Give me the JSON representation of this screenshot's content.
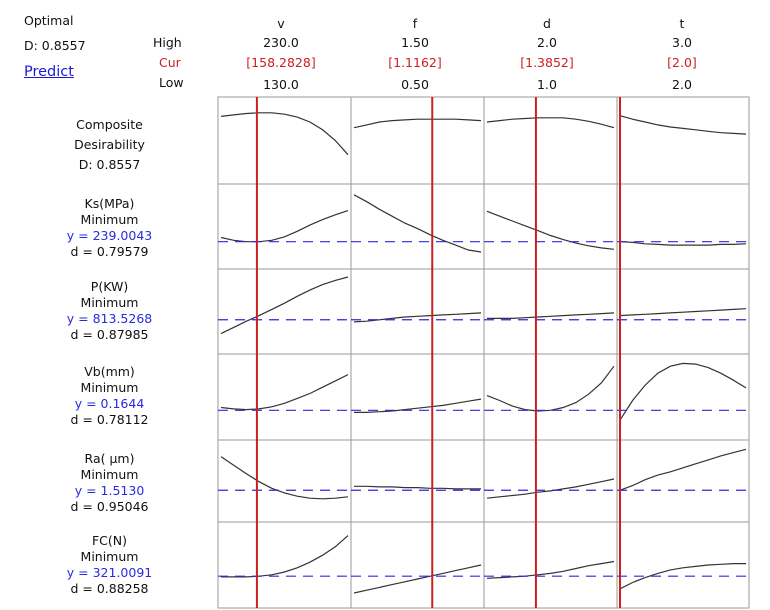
{
  "header": {
    "optimal_label": "Optimal",
    "d_value": "D: 0.8557",
    "predict_label": "Predict",
    "high_label": "High",
    "cur_label": "Cur",
    "low_label": "Low"
  },
  "factors": [
    {
      "name": "v",
      "high": "230.0",
      "cur": "[158.2828]",
      "low": "130.0",
      "high_num": 230,
      "cur_num": 158.2828,
      "low_num": 130
    },
    {
      "name": "f",
      "high": "1.50",
      "cur": "[1.1162]",
      "low": "0.50",
      "high_num": 1.5,
      "cur_num": 1.1162,
      "low_num": 0.5
    },
    {
      "name": "d",
      "high": "2.0",
      "cur": "[1.3852]",
      "low": "1.0",
      "high_num": 2.0,
      "cur_num": 1.3852,
      "low_num": 1.0
    },
    {
      "name": "t",
      "high": "3.0",
      "cur": "[2.0]",
      "low": "2.0",
      "high_num": 3.0,
      "cur_num": 2.0,
      "low_num": 2.0
    }
  ],
  "responses": [
    {
      "title": "Composite",
      "subtitle": "Desirability",
      "y": "",
      "d": "D: 0.8557"
    },
    {
      "title": "Ks(MPa)",
      "subtitle": "Minimum",
      "y": "y = 239.0043",
      "d": "d = 0.79579"
    },
    {
      "title": "P(KW)",
      "subtitle": "Minimum",
      "y": "y = 813.5268",
      "d": "d = 0.87985"
    },
    {
      "title": "Vb(mm)",
      "subtitle": "Minimum",
      "y": "y = 0.1644",
      "d": "d = 0.78112"
    },
    {
      "title": "Ra( µm)",
      "subtitle": "Minimum",
      "y": "y = 1.5130",
      "d": "d = 0.95046"
    },
    {
      "title": "FC(N)",
      "subtitle": "Minimum",
      "y": "y = 321.0091",
      "d": "d = 0.88258"
    }
  ],
  "colors": {
    "current_line": "#cc1f1f",
    "target_line": "#2a2adf",
    "curve": "#333333",
    "grid": "#9a9a9a"
  },
  "chart_data": {
    "type": "line",
    "title": "",
    "xlabel": "",
    "ylabel": "",
    "grid": true,
    "x_samples": [
      0,
      0.1,
      0.2,
      0.3,
      0.4,
      0.5,
      0.6,
      0.7,
      0.8,
      0.9,
      1.0
    ],
    "panels": [
      {
        "row": 0,
        "factor": "v",
        "curve": [
          0.16,
          0.14,
          0.12,
          0.11,
          0.11,
          0.13,
          0.17,
          0.24,
          0.35,
          0.5,
          0.7
        ],
        "ref": null
      },
      {
        "row": 0,
        "factor": "f",
        "curve": [
          0.32,
          0.28,
          0.24,
          0.22,
          0.21,
          0.2,
          0.2,
          0.2,
          0.2,
          0.21,
          0.22
        ],
        "ref": null
      },
      {
        "row": 0,
        "factor": "d",
        "curve": [
          0.24,
          0.22,
          0.2,
          0.19,
          0.18,
          0.18,
          0.18,
          0.2,
          0.23,
          0.27,
          0.32
        ],
        "ref": null
      },
      {
        "row": 0,
        "factor": "t",
        "curve": [
          0.15,
          0.2,
          0.24,
          0.28,
          0.31,
          0.33,
          0.35,
          0.37,
          0.39,
          0.4,
          0.41
        ],
        "ref": null
      },
      {
        "row": 1,
        "factor": "v",
        "curve": [
          0.66,
          0.7,
          0.72,
          0.72,
          0.7,
          0.65,
          0.57,
          0.48,
          0.4,
          0.33,
          0.27
        ],
        "ref": 0.72
      },
      {
        "row": 1,
        "factor": "f",
        "curve": [
          0.04,
          0.14,
          0.25,
          0.35,
          0.45,
          0.53,
          0.62,
          0.7,
          0.77,
          0.84,
          0.87
        ],
        "ref": 0.72
      },
      {
        "row": 1,
        "factor": "d",
        "curve": [
          0.28,
          0.35,
          0.42,
          0.49,
          0.56,
          0.63,
          0.69,
          0.74,
          0.78,
          0.81,
          0.83
        ],
        "ref": 0.72
      },
      {
        "row": 1,
        "factor": "t",
        "curve": [
          0.72,
          0.73,
          0.75,
          0.76,
          0.77,
          0.77,
          0.77,
          0.77,
          0.76,
          0.76,
          0.75
        ],
        "ref": 0.72
      },
      {
        "row": 2,
        "factor": "v",
        "curve": [
          0.82,
          0.73,
          0.64,
          0.56,
          0.47,
          0.38,
          0.28,
          0.19,
          0.11,
          0.05,
          0.0
        ],
        "ref": 0.62
      },
      {
        "row": 2,
        "factor": "f",
        "curve": [
          0.65,
          0.64,
          0.62,
          0.6,
          0.58,
          0.57,
          0.56,
          0.55,
          0.54,
          0.53,
          0.52
        ],
        "ref": 0.62
      },
      {
        "row": 2,
        "factor": "d",
        "curve": [
          0.6,
          0.6,
          0.6,
          0.59,
          0.58,
          0.57,
          0.56,
          0.55,
          0.54,
          0.53,
          0.52
        ],
        "ref": 0.62
      },
      {
        "row": 2,
        "factor": "t",
        "curve": [
          0.56,
          0.55,
          0.54,
          0.53,
          0.52,
          0.51,
          0.5,
          0.49,
          0.48,
          0.47,
          0.46
        ],
        "ref": 0.62
      },
      {
        "row": 3,
        "factor": "v",
        "curve": [
          0.65,
          0.67,
          0.68,
          0.67,
          0.64,
          0.59,
          0.52,
          0.45,
          0.36,
          0.27,
          0.18
        ],
        "ref": 0.69
      },
      {
        "row": 3,
        "factor": "f",
        "curve": [
          0.72,
          0.72,
          0.71,
          0.7,
          0.68,
          0.66,
          0.64,
          0.62,
          0.59,
          0.56,
          0.53
        ],
        "ref": 0.69
      },
      {
        "row": 3,
        "factor": "d",
        "curve": [
          0.48,
          0.55,
          0.63,
          0.68,
          0.7,
          0.69,
          0.65,
          0.58,
          0.46,
          0.3,
          0.06
        ],
        "ref": 0.69
      },
      {
        "row": 3,
        "factor": "t",
        "curve": [
          0.83,
          0.55,
          0.33,
          0.16,
          0.06,
          0.02,
          0.03,
          0.08,
          0.16,
          0.26,
          0.37
        ],
        "ref": 0.69
      },
      {
        "row": 4,
        "factor": "v",
        "curve": [
          0.13,
          0.26,
          0.39,
          0.51,
          0.61,
          0.68,
          0.73,
          0.76,
          0.77,
          0.76,
          0.74
        ],
        "ref": 0.64
      },
      {
        "row": 4,
        "factor": "f",
        "curve": [
          0.58,
          0.58,
          0.59,
          0.59,
          0.6,
          0.6,
          0.61,
          0.61,
          0.62,
          0.62,
          0.62
        ],
        "ref": 0.64
      },
      {
        "row": 4,
        "factor": "d",
        "curve": [
          0.76,
          0.74,
          0.72,
          0.7,
          0.67,
          0.65,
          0.62,
          0.59,
          0.55,
          0.51,
          0.47
        ],
        "ref": 0.64
      },
      {
        "row": 4,
        "factor": "t",
        "curve": [
          0.64,
          0.57,
          0.48,
          0.41,
          0.36,
          0.3,
          0.24,
          0.18,
          0.12,
          0.07,
          0.02
        ],
        "ref": 0.64
      },
      {
        "row": 5,
        "factor": "v",
        "curve": [
          0.67,
          0.67,
          0.67,
          0.66,
          0.64,
          0.6,
          0.54,
          0.46,
          0.36,
          0.24,
          0.08
        ],
        "ref": 0.66
      },
      {
        "row": 5,
        "factor": "f",
        "curve": [
          0.9,
          0.86,
          0.82,
          0.78,
          0.74,
          0.7,
          0.66,
          0.62,
          0.58,
          0.54,
          0.5
        ],
        "ref": 0.66
      },
      {
        "row": 5,
        "factor": "d",
        "curve": [
          0.69,
          0.68,
          0.67,
          0.66,
          0.64,
          0.62,
          0.59,
          0.55,
          0.51,
          0.48,
          0.45
        ],
        "ref": 0.66
      },
      {
        "row": 5,
        "factor": "t",
        "curve": [
          0.84,
          0.75,
          0.68,
          0.62,
          0.57,
          0.54,
          0.52,
          0.5,
          0.49,
          0.48,
          0.48
        ],
        "ref": 0.66
      }
    ]
  }
}
